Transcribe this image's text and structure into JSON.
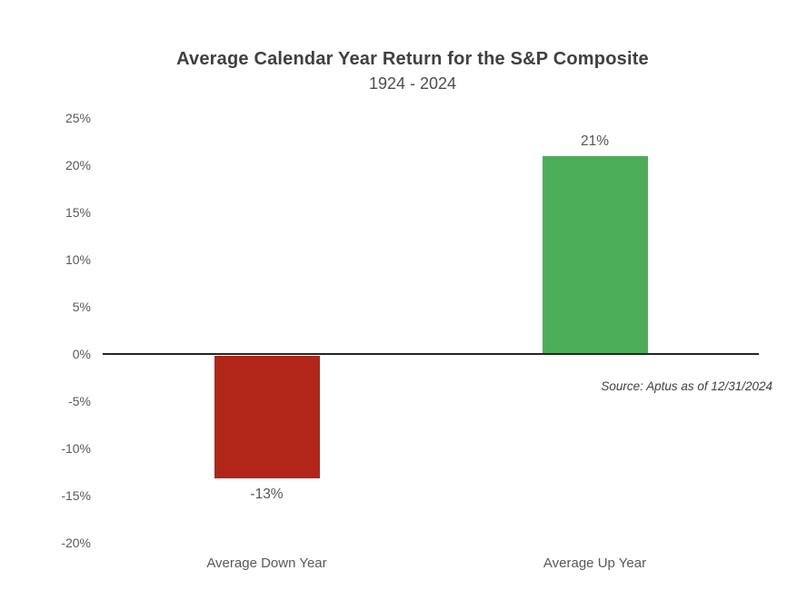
{
  "chart": {
    "title": "Average Calendar Year Return for the S&P Composite",
    "subtitle": "1924 - 2024",
    "source": "Source: Aptus as of 12/31/2024"
  },
  "chart_data": {
    "type": "bar",
    "title": "Average Calendar Year Return for the S&P Composite",
    "subtitle": "1924 - 2024",
    "categories": [
      "Average Down Year",
      "Average Up Year"
    ],
    "values": [
      -13,
      21
    ],
    "value_labels": [
      "-13%",
      "21%"
    ],
    "bar_colors": [
      "#b2261a",
      "#4cae58"
    ],
    "xlabel": "",
    "ylabel": "",
    "ylim": [
      -20,
      25
    ],
    "ytick_step": 5,
    "yticks": [
      25,
      20,
      15,
      10,
      5,
      0,
      -5,
      -10,
      -15,
      -20
    ],
    "ytick_labels": [
      "25%",
      "20%",
      "15%",
      "10%",
      "5%",
      "0%",
      "-5%",
      "-10%",
      "-15%",
      "-20%"
    ],
    "grid": false,
    "legend": false,
    "baseline_at_zero": true,
    "source": "Source: Aptus as of 12/31/2024"
  },
  "colors": {
    "down_bar": "#b2261a",
    "up_bar": "#4cae58",
    "axis_line": "#262626",
    "title_text": "#404040",
    "subtitle_text": "#4d4d4d",
    "tick_text": "#595959",
    "value_label_text": "#555555",
    "source_text": "#404040",
    "background": "#ffffff"
  }
}
